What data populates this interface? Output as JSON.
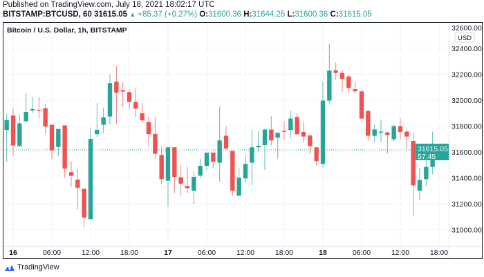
{
  "header": {
    "published": "Published on TradingView.com, July 18, 2021 18:02:17 UTC",
    "symbol": "BITSTAMP:BTCUSD, 60",
    "last": "31615.05",
    "change": "+85.37 (+0.27%)",
    "o_label": "O:",
    "o": "31600.36",
    "h_label": "H:",
    "h": "31644.25",
    "l_label": "L:",
    "l": "31600.36",
    "c_label": "C:",
    "c": "31615.05"
  },
  "brand": "TradingView",
  "colors": {
    "up": "#26a69a",
    "down": "#ef5350",
    "grid": "#f0f3fa"
  },
  "chart_data": {
    "type": "candlestick",
    "title": "Bitcoin / U.S. Dollar, 1h, BITSTAMP",
    "currency": "USD",
    "ylim": [
      30900,
      32600
    ],
    "yticks": [
      "31000.00",
      "31200.00",
      "31400.00",
      "31600.00",
      "31800.00",
      "32000.00",
      "32200.00",
      "32400.00",
      "32600.00"
    ],
    "ytick_values": [
      31000,
      31200,
      31400,
      31600,
      31800,
      32000,
      32200,
      32400,
      32600
    ],
    "xticks": [
      {
        "label": "16",
        "hour": 1,
        "bold": true
      },
      {
        "label": "06:00",
        "hour": 7
      },
      {
        "label": "12:00",
        "hour": 13
      },
      {
        "label": "18:00",
        "hour": 19
      },
      {
        "label": "17",
        "hour": 25,
        "bold": true
      },
      {
        "label": "06:00",
        "hour": 31
      },
      {
        "label": "12:00",
        "hour": 37
      },
      {
        "label": "18:00",
        "hour": 43
      },
      {
        "label": "18",
        "hour": 49,
        "bold": true
      },
      {
        "label": "06:00",
        "hour": 55
      },
      {
        "label": "12:00",
        "hour": 61
      },
      {
        "label": "18:00",
        "hour": 67
      }
    ],
    "last_price_label": "31615.05",
    "countdown": "57:45",
    "last_price": 31615.05,
    "ohlc": [
      [
        31768,
        31892,
        31523,
        31844
      ],
      [
        31880,
        31942,
        31567,
        31649
      ],
      [
        31644,
        31887,
        31644,
        31820
      ],
      [
        31836,
        32049,
        31825,
        31908
      ],
      [
        31919,
        32022,
        31898,
        31930
      ],
      [
        31923,
        32026,
        31860,
        31916
      ],
      [
        31937,
        31967,
        31738,
        31795
      ],
      [
        31809,
        31809,
        31542,
        31611
      ],
      [
        31638,
        31777,
        31569,
        31777
      ],
      [
        31804,
        31804,
        31400,
        31471
      ],
      [
        31443,
        31528,
        31332,
        31414
      ],
      [
        31386,
        31466,
        31155,
        31323
      ],
      [
        31315,
        31315,
        31016,
        31092
      ],
      [
        31080,
        31782,
        31080,
        31700
      ],
      [
        31736,
        31976,
        31715,
        31770
      ],
      [
        31809,
        31940,
        31745,
        31866
      ],
      [
        31873,
        32200,
        31812,
        32131
      ],
      [
        32141,
        32262,
        31812,
        32056
      ],
      [
        32076,
        32136,
        31946,
        32065
      ],
      [
        32061,
        32083,
        31928,
        31985
      ],
      [
        31985,
        32088,
        31866,
        31933
      ],
      [
        31898,
        31976,
        31827,
        31843
      ],
      [
        31830,
        31869,
        31635,
        31736
      ],
      [
        31738,
        31869,
        31549,
        31585
      ],
      [
        31576,
        31640,
        31350,
        31389
      ],
      [
        31377,
        31635,
        31176,
        31635
      ],
      [
        31635,
        31635,
        31283,
        31407
      ],
      [
        31404,
        31501,
        31258,
        31354
      ],
      [
        31336,
        31483,
        31284,
        31320
      ],
      [
        31300,
        31448,
        31199,
        31407
      ],
      [
        31416,
        31546,
        31398,
        31492
      ],
      [
        31492,
        31594,
        31457,
        31594
      ],
      [
        31594,
        31594,
        31471,
        31523
      ],
      [
        31516,
        31951,
        31368,
        31688
      ],
      [
        31724,
        31795,
        31613,
        31626
      ],
      [
        31608,
        31608,
        31261,
        31300
      ],
      [
        31261,
        31480,
        31261,
        31400
      ],
      [
        31395,
        31578,
        31359,
        31507
      ],
      [
        31516,
        31773,
        31345,
        31635
      ],
      [
        31635,
        31759,
        31599,
        31647
      ],
      [
        31652,
        31777,
        31460,
        31772
      ],
      [
        31772,
        31875,
        31649,
        31688
      ],
      [
        31709,
        31747,
        31549,
        31747
      ],
      [
        31763,
        31834,
        31688,
        31756
      ],
      [
        31768,
        31919,
        31709,
        31857
      ],
      [
        31869,
        31898,
        31736,
        31736
      ],
      [
        31754,
        31834,
        31670,
        31718
      ],
      [
        31727,
        31727,
        31585,
        31644
      ],
      [
        31635,
        31635,
        31496,
        31528
      ],
      [
        31507,
        32138,
        31480,
        31996
      ],
      [
        31996,
        32435,
        31972,
        32227
      ],
      [
        32230,
        32289,
        32156,
        32209
      ],
      [
        32209,
        32227,
        32061,
        32164
      ],
      [
        32182,
        32195,
        32056,
        32093
      ],
      [
        32084,
        32141,
        32052,
        32067
      ],
      [
        32067,
        32076,
        31857,
        31857
      ],
      [
        31916,
        31923,
        31683,
        31724
      ],
      [
        31724,
        31807,
        31675,
        31773
      ],
      [
        31750,
        31848,
        31674,
        31756
      ],
      [
        31750,
        31750,
        31587,
        31729
      ],
      [
        31697,
        31812,
        31679,
        31798
      ],
      [
        31798,
        31857,
        31693,
        31754
      ],
      [
        31756,
        31773,
        31626,
        31718
      ],
      [
        31684,
        31750,
        31101,
        31341
      ],
      [
        31300,
        31478,
        31226,
        31382
      ],
      [
        31389,
        31564,
        31338,
        31483
      ],
      [
        31483,
        31756,
        31427,
        31624
      ],
      [
        31600,
        31644,
        31600,
        31615
      ]
    ]
  }
}
